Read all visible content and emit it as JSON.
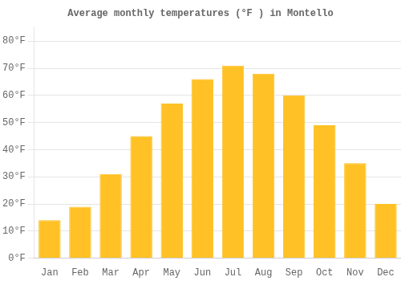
{
  "chart_data": {
    "type": "bar",
    "title": "Average monthly temperatures (°F ) in Montello",
    "categories": [
      "Jan",
      "Feb",
      "Mar",
      "Apr",
      "May",
      "Jun",
      "Jul",
      "Aug",
      "Sep",
      "Oct",
      "Nov",
      "Dec"
    ],
    "values": [
      14,
      19,
      31,
      45,
      57,
      66,
      71,
      68,
      60,
      49,
      35,
      20
    ],
    "color": "#FFC125",
    "ylim": [
      0,
      85
    ],
    "yticks": [
      {
        "value": 0,
        "label": "0°F"
      },
      {
        "value": 10,
        "label": "10°F"
      },
      {
        "value": 20,
        "label": "20°F"
      },
      {
        "value": 30,
        "label": "30°F"
      },
      {
        "value": 40,
        "label": "40°F"
      },
      {
        "value": 50,
        "label": "50°F"
      },
      {
        "value": 60,
        "label": "60°F"
      },
      {
        "value": 70,
        "label": "70°F"
      },
      {
        "value": 80,
        "label": "80°F"
      }
    ],
    "grid": true
  }
}
